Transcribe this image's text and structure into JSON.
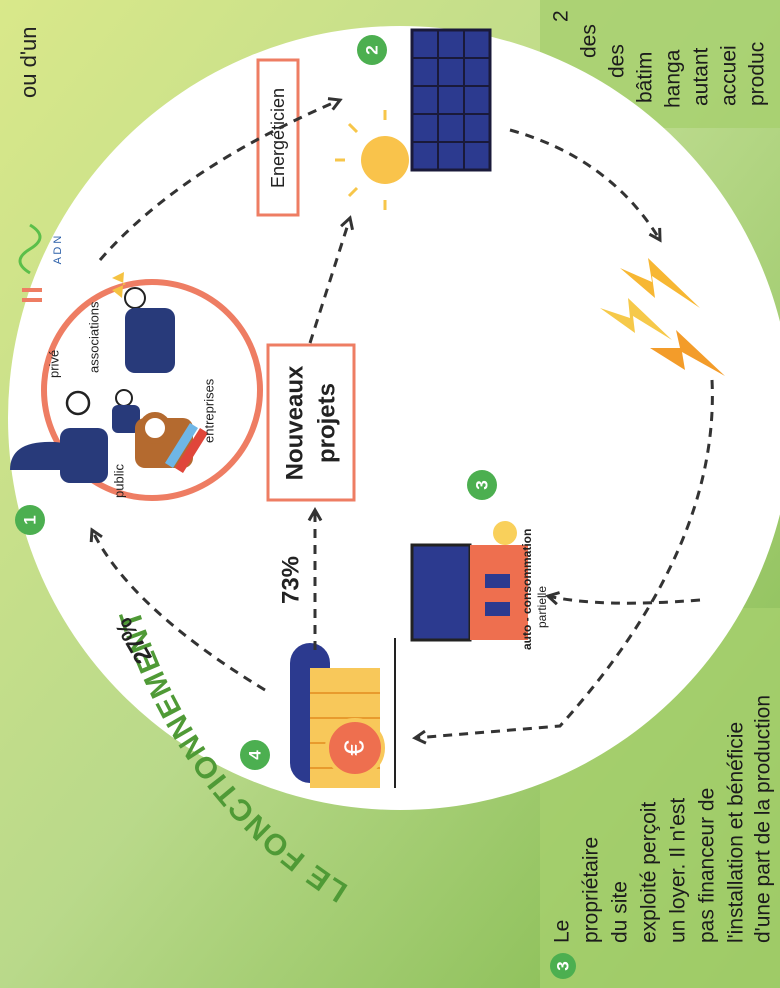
{
  "title": "LE FONCTIONNEMENT",
  "fragment_left": "ou d'un",
  "circle_1": {
    "number": "1",
    "labels": [
      "privé",
      "associations",
      "public",
      "entreprises"
    ]
  },
  "logo": "A D N",
  "energeticien": "Energéticien",
  "step_2_number": "2",
  "nouveaux_projets": [
    "Nouveaux",
    "projets"
  ],
  "step_3": {
    "number": "3",
    "label": [
      "auto - consommation",
      "partielle"
    ]
  },
  "step_4_number": "4",
  "percent_27": "27%",
  "percent_73": "73%",
  "note_3": {
    "number": "3",
    "lines": [
      "Le",
      "propriétaire",
      "du site",
      "exploité perçoit",
      "un loyer. Il n'est",
      "pas financeur de",
      "l'installation et bénéficie",
      "d'une part de la production"
    ]
  },
  "fragment_right": {
    "number": "2",
    "lines": [
      "des",
      "des",
      "bâtim",
      "hanga",
      "autant",
      "accuei",
      "produc"
    ]
  }
}
